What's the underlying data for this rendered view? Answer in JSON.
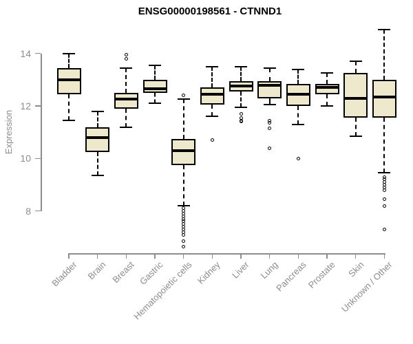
{
  "title": "ENSG00000198561 - CTNND1",
  "chart_data": {
    "type": "boxplot",
    "title": "ENSG00000198561 - CTNND1",
    "xlabel": "",
    "ylabel": "Expression",
    "y_ticks": [
      8,
      10,
      12,
      14
    ],
    "ylim_axis": [
      8,
      14
    ],
    "grid": false,
    "legend": "none",
    "box_fill_color": "#EEE8CD",
    "box_line_color": "#000000",
    "axis_color": "#8C8C8C",
    "categories": [
      "Bladder",
      "Brain",
      "Breast",
      "Gastric",
      "Hematopoietic cells",
      "Kidney",
      "Liver",
      "Lung",
      "Pancreas",
      "Prostate",
      "Skin",
      "Unknown / Other"
    ],
    "series": [
      {
        "label": "Bladder",
        "whisker_low": 11.45,
        "q1": 12.45,
        "median": 13.0,
        "q3": 13.45,
        "whisker_high": 14.0,
        "outliers": []
      },
      {
        "label": "Brain",
        "whisker_low": 9.35,
        "q1": 10.25,
        "median": 10.8,
        "q3": 11.2,
        "whisker_high": 11.8,
        "outliers": []
      },
      {
        "label": "Breast",
        "whisker_low": 11.2,
        "q1": 11.9,
        "median": 12.25,
        "q3": 12.5,
        "whisker_high": 13.45,
        "outliers": [
          13.95,
          13.8
        ]
      },
      {
        "label": "Gastric",
        "whisker_low": 12.1,
        "q1": 12.5,
        "median": 12.65,
        "q3": 13.0,
        "whisker_high": 13.55,
        "outliers": []
      },
      {
        "label": "Hematopoietic cells",
        "whisker_low": 8.2,
        "q1": 9.75,
        "median": 10.3,
        "q3": 10.75,
        "whisker_high": 12.25,
        "outliers": [
          12.4,
          8.1,
          8.0,
          7.9,
          7.8,
          7.7,
          7.6,
          7.5,
          7.4,
          7.3,
          7.2,
          7.1,
          6.85,
          6.65
        ]
      },
      {
        "label": "Kidney",
        "whisker_low": 11.6,
        "q1": 12.05,
        "median": 12.45,
        "q3": 12.7,
        "whisker_high": 13.5,
        "outliers": [
          10.7
        ]
      },
      {
        "label": "Liver",
        "whisker_low": 11.95,
        "q1": 12.55,
        "median": 12.75,
        "q3": 12.95,
        "whisker_high": 13.5,
        "outliers": [
          11.7,
          11.55,
          11.45,
          11.4
        ]
      },
      {
        "label": "Lung",
        "whisker_low": 12.05,
        "q1": 12.3,
        "median": 12.8,
        "q3": 12.95,
        "whisker_high": 13.45,
        "outliers": [
          11.45,
          11.35,
          11.15,
          10.4
        ]
      },
      {
        "label": "Pancreas",
        "whisker_low": 11.3,
        "q1": 12.0,
        "median": 12.45,
        "q3": 12.85,
        "whisker_high": 13.4,
        "outliers": [
          10.0
        ]
      },
      {
        "label": "Prostate",
        "whisker_low": 12.0,
        "q1": 12.45,
        "median": 12.7,
        "q3": 12.85,
        "whisker_high": 13.25,
        "outliers": []
      },
      {
        "label": "Skin",
        "whisker_low": 10.85,
        "q1": 11.55,
        "median": 12.3,
        "q3": 13.25,
        "whisker_high": 13.7,
        "outliers": []
      },
      {
        "label": "Unknown / Other",
        "whisker_low": 9.45,
        "q1": 11.55,
        "median": 12.35,
        "q3": 13.0,
        "whisker_high": 14.9,
        "outliers": [
          9.3,
          9.2,
          9.1,
          9.0,
          8.9,
          8.8,
          8.45,
          8.2,
          7.3
        ]
      }
    ]
  }
}
